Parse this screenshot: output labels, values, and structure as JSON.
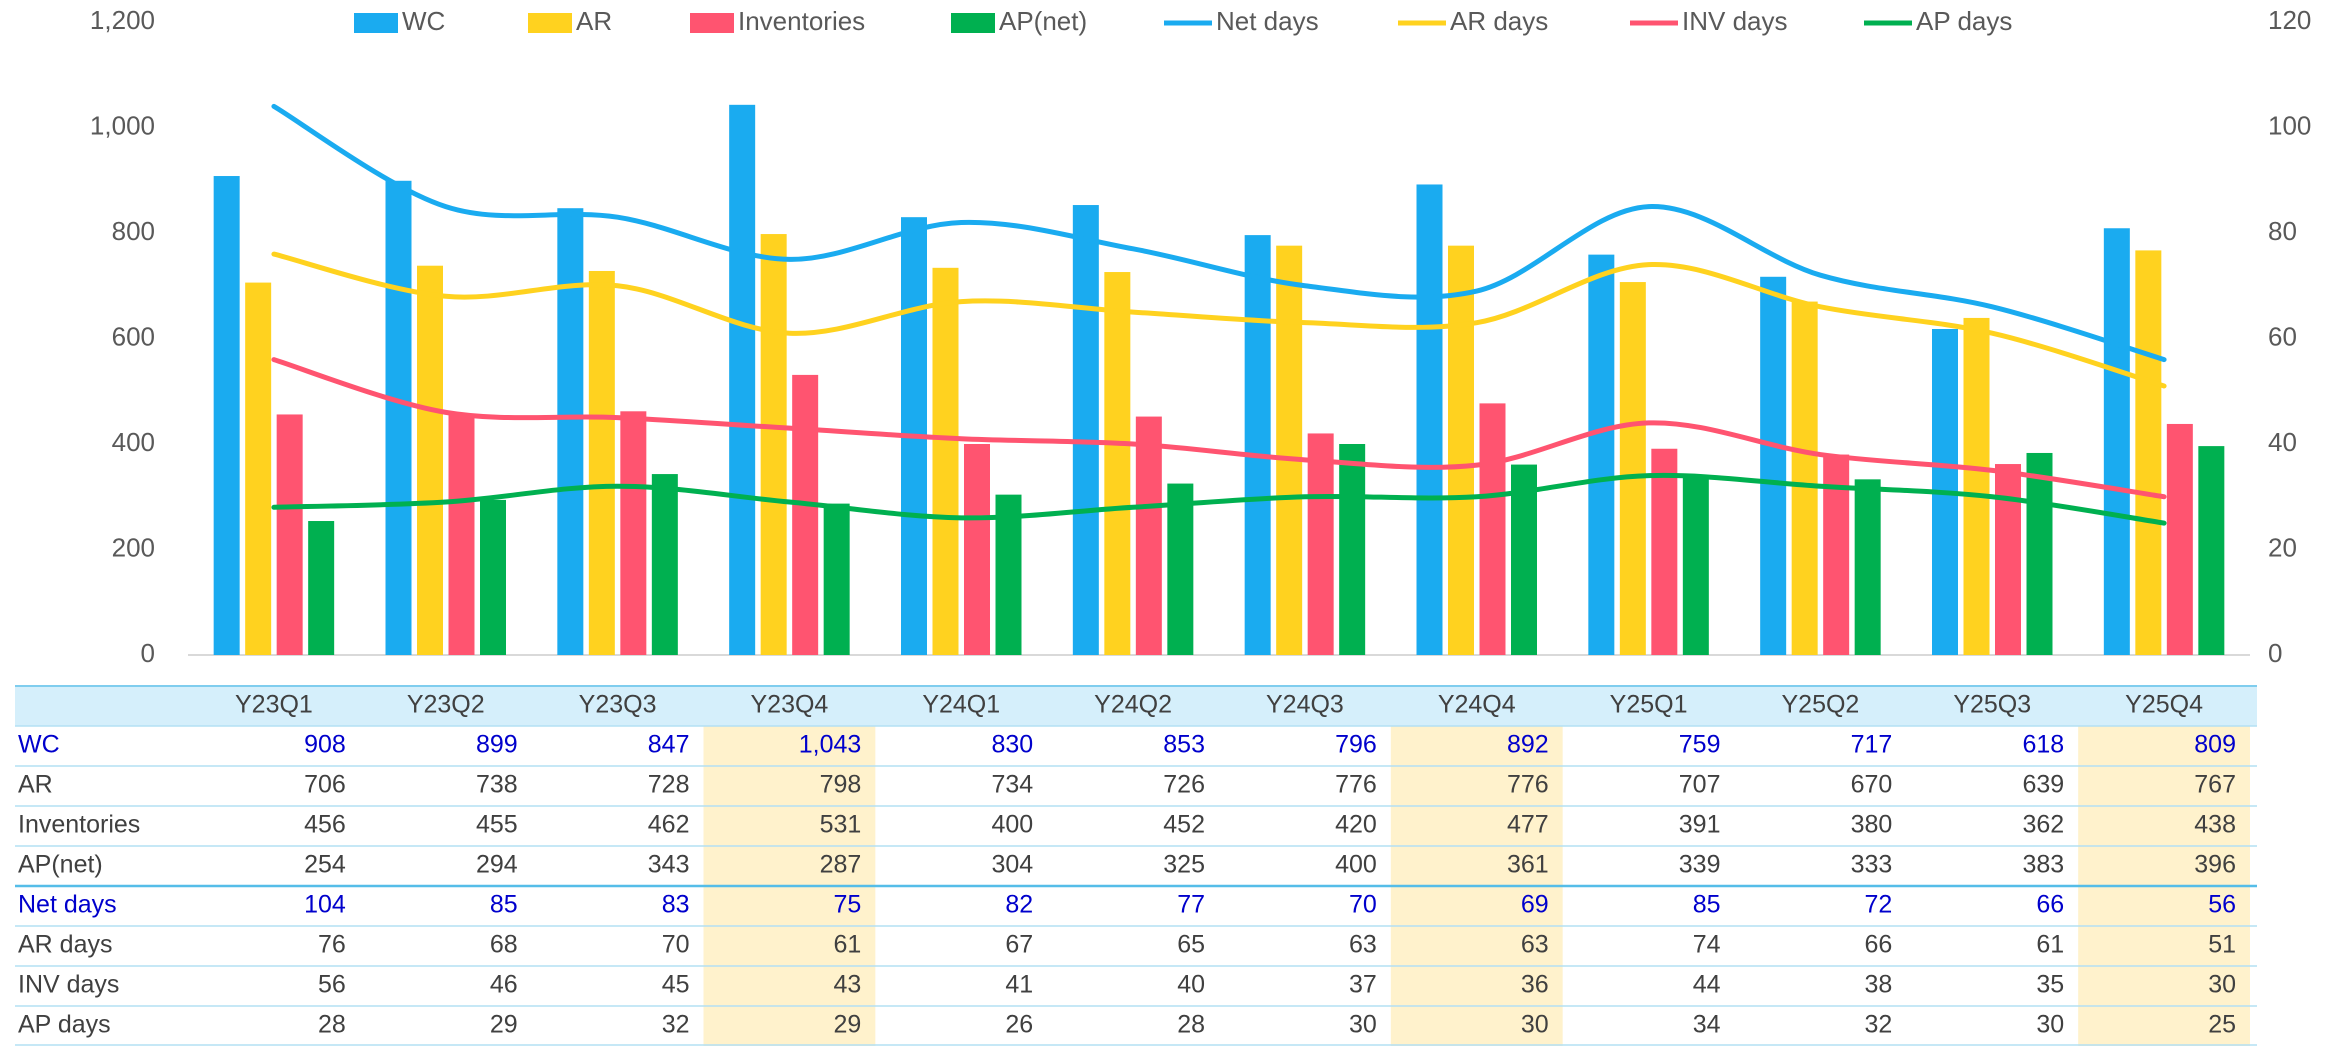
{
  "chart_data": {
    "type": "bar",
    "categories": [
      "Y23Q1",
      "Y23Q2",
      "Y23Q3",
      "Y23Q4",
      "Y24Q1",
      "Y24Q2",
      "Y24Q3",
      "Y24Q4",
      "Y25Q1",
      "Y25Q2",
      "Y25Q3",
      "Y25Q4"
    ],
    "series": [
      {
        "name": "WC",
        "type": "bar",
        "color": "#1aabf0",
        "values": [
          908,
          899,
          847,
          1043,
          830,
          853,
          796,
          892,
          759,
          717,
          618,
          809
        ],
        "value_labels": [
          "908",
          "899",
          "847",
          "1,043",
          "830",
          "853",
          "796",
          "892",
          "759",
          "717",
          "618",
          "809"
        ]
      },
      {
        "name": "AR",
        "type": "bar",
        "color": "#ffd21f",
        "values": [
          706,
          738,
          728,
          798,
          734,
          726,
          776,
          776,
          707,
          670,
          639,
          767
        ]
      },
      {
        "name": "Inventories",
        "type": "bar",
        "color": "#ff5470",
        "values": [
          456,
          455,
          462,
          531,
          400,
          452,
          420,
          477,
          391,
          380,
          362,
          438
        ]
      },
      {
        "name": "AP(net)",
        "type": "bar",
        "color": "#00b050",
        "values": [
          254,
          294,
          343,
          287,
          304,
          325,
          400,
          361,
          339,
          333,
          383,
          396
        ]
      },
      {
        "name": "Net days",
        "type": "line",
        "axis": "y2",
        "color": "#1aabf0",
        "values": [
          104,
          85,
          83,
          75,
          82,
          77,
          70,
          69,
          85,
          72,
          66,
          56
        ]
      },
      {
        "name": "AR days",
        "type": "line",
        "axis": "y2",
        "color": "#ffd21f",
        "values": [
          76,
          68,
          70,
          61,
          67,
          65,
          63,
          63,
          74,
          66,
          61,
          51
        ]
      },
      {
        "name": "INV days",
        "type": "line",
        "axis": "y2",
        "color": "#ff5470",
        "values": [
          56,
          46,
          45,
          43,
          41,
          40,
          37,
          36,
          44,
          38,
          35,
          30
        ]
      },
      {
        "name": "AP days",
        "type": "line",
        "axis": "y2",
        "color": "#00b050",
        "values": [
          28,
          29,
          32,
          29,
          26,
          28,
          30,
          30,
          34,
          32,
          30,
          25
        ]
      }
    ],
    "ylim": [
      0,
      1200
    ],
    "yticks": [
      0,
      200,
      400,
      600,
      800,
      {
        "value": 1000,
        "label": "1,000"
      },
      {
        "value": 1200,
        "label": "1,200"
      }
    ],
    "y2lim": [
      0,
      120
    ],
    "y2ticks": [
      0,
      20,
      40,
      60,
      80,
      100,
      120
    ],
    "grid": false,
    "legend": "top"
  }
}
